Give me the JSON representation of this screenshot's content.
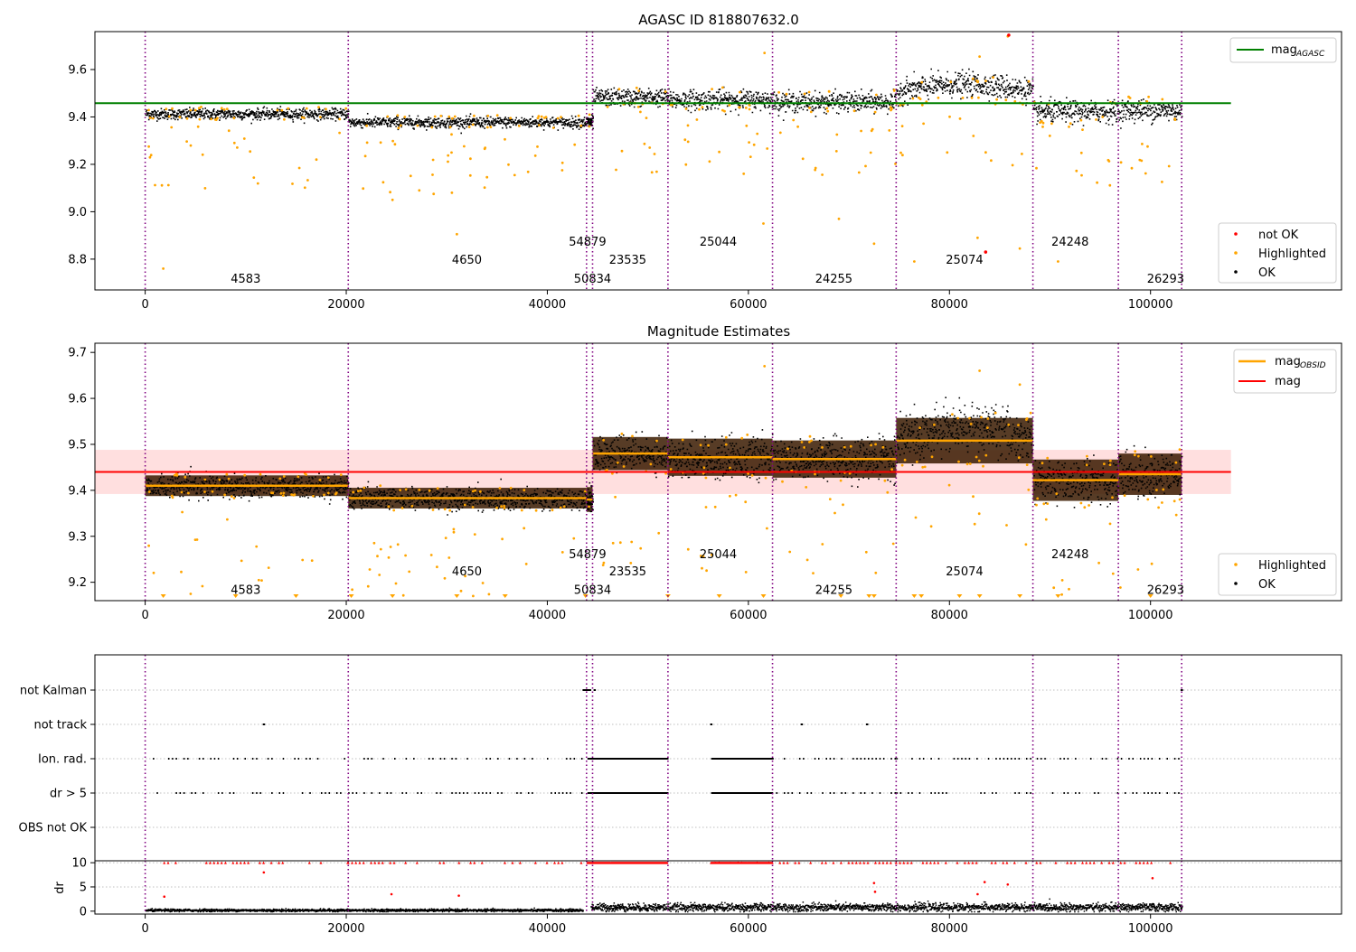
{
  "figure": {
    "title_top": "AGASC ID 818807632.0",
    "title_middle": "Magnitude Estimates"
  },
  "colors": {
    "ok": "#000000",
    "highlighted": "#ffa500",
    "not_ok": "#ff0000",
    "agasc_line": "#008000",
    "mag_line": "#ff0000",
    "mag_obsid_line": "#ffa500",
    "band": "#ffc0c0",
    "obs_boundary": "#800080"
  },
  "chart_data": [
    {
      "type": "scatter",
      "title": "AGASC ID 818807632.0",
      "xlim": [
        -5000,
        119000
      ],
      "ylim": [
        8.67,
        9.76
      ],
      "xticks": [
        0,
        20000,
        40000,
        60000,
        80000,
        100000
      ],
      "yticks": [
        8.8,
        9.0,
        9.2,
        9.4,
        9.6
      ],
      "obs_boundaries": [
        0,
        20200,
        43900,
        44500,
        52000,
        62400,
        74700,
        88300,
        96800,
        103100
      ],
      "mag_agasc": 9.458,
      "segments": [
        {
          "x0": 0,
          "x1": 20200,
          "mean": 9.415,
          "spread": 0.025
        },
        {
          "x0": 20200,
          "x1": 43900,
          "mean": 9.38,
          "spread": 0.025
        },
        {
          "x0": 43900,
          "x1": 44500,
          "mean": 9.38,
          "spread": 0.03
        },
        {
          "x0": 44500,
          "x1": 52000,
          "mean": 9.485,
          "spread": 0.04
        },
        {
          "x0": 52000,
          "x1": 62400,
          "mean": 9.475,
          "spread": 0.045
        },
        {
          "x0": 62400,
          "x1": 74700,
          "mean": 9.465,
          "spread": 0.045
        },
        {
          "x0": 74700,
          "x1": 88300,
          "mean": 9.51,
          "spread": 0.055
        },
        {
          "x0": 88300,
          "x1": 96800,
          "mean": 9.425,
          "spread": 0.05
        },
        {
          "x0": 96800,
          "x1": 103100,
          "mean": 9.43,
          "spread": 0.05
        }
      ],
      "obsid_labels": [
        {
          "text": "4583",
          "x": 10000,
          "y": 8.72
        },
        {
          "text": "4650",
          "x": 32000,
          "y": 8.8
        },
        {
          "text": "54879",
          "x": 44000,
          "y": 8.875
        },
        {
          "text": "50834",
          "x": 44500,
          "y": 8.72
        },
        {
          "text": "23535",
          "x": 48000,
          "y": 8.8
        },
        {
          "text": "25044",
          "x": 57000,
          "y": 8.875
        },
        {
          "text": "24255",
          "x": 68500,
          "y": 8.72
        },
        {
          "text": "25074",
          "x": 81500,
          "y": 8.8
        },
        {
          "text": "24248",
          "x": 92000,
          "y": 8.875
        },
        {
          "text": "26293",
          "x": 101500,
          "y": 8.72
        }
      ],
      "legend_lines": [
        "mag",
        "AGASC"
      ],
      "legend_points": [
        "not OK",
        "Highlighted",
        "OK"
      ]
    },
    {
      "type": "scatter",
      "title": "Magnitude Estimates",
      "xlim": [
        -5000,
        119000
      ],
      "ylim": [
        9.16,
        9.72
      ],
      "xticks": [
        0,
        20000,
        40000,
        60000,
        80000,
        100000
      ],
      "yticks": [
        9.2,
        9.3,
        9.4,
        9.5,
        9.6,
        9.7
      ],
      "mag": 9.44,
      "mag_band": [
        9.392,
        9.488
      ],
      "mag_line_xmax": 108000,
      "segment_means": [
        9.41,
        9.383,
        9.38,
        9.48,
        9.472,
        9.468,
        9.508,
        9.422,
        9.435
      ],
      "obsid_labels": [
        {
          "text": "4583",
          "x": 10000,
          "y": 9.185
        },
        {
          "text": "4650",
          "x": 32000,
          "y": 9.225
        },
        {
          "text": "54879",
          "x": 44000,
          "y": 9.262
        },
        {
          "text": "50834",
          "x": 44500,
          "y": 9.185
        },
        {
          "text": "23535",
          "x": 48000,
          "y": 9.225
        },
        {
          "text": "25044",
          "x": 57000,
          "y": 9.262
        },
        {
          "text": "24255",
          "x": 68500,
          "y": 9.185
        },
        {
          "text": "25074",
          "x": 81500,
          "y": 9.225
        },
        {
          "text": "24248",
          "x": 92000,
          "y": 9.262
        },
        {
          "text": "26293",
          "x": 101500,
          "y": 9.185
        }
      ],
      "legend_lines": [
        "mag",
        "OBSID",
        "mag"
      ],
      "legend_points": [
        "Highlighted",
        "OK"
      ]
    },
    {
      "type": "scatter",
      "categories": [
        "not Kalman",
        "not track",
        "Ion. rad.",
        "dr > 5",
        "OBS not OK"
      ],
      "xlim": [
        -5000,
        119000
      ],
      "flag_runs": {
        "not_kalman": [
          [
            43500,
            44300
          ],
          [
            44600,
            44700
          ],
          [
            103000,
            103100
          ]
        ],
        "not_track": [
          [
            11700,
            11800
          ],
          [
            56200,
            56300
          ],
          [
            65200,
            65300
          ],
          [
            71700,
            71800
          ]
        ],
        "ion_rad": [
          [
            0,
            20200
          ],
          [
            20200,
            43500
          ],
          [
            44000,
            52000
          ],
          [
            56300,
            74700
          ],
          [
            74700,
            88300
          ],
          [
            88300,
            103100
          ]
        ],
        "dr_gt_5": [
          [
            0,
            20200
          ],
          [
            20200,
            43500
          ],
          [
            44000,
            52000
          ],
          [
            56300,
            74700
          ],
          [
            74700,
            88300
          ],
          [
            88300,
            103100
          ]
        ]
      }
    },
    {
      "type": "scatter",
      "ylabel": "dr",
      "xlim": [
        -5000,
        119000
      ],
      "ylim": [
        -0.6,
        10.4
      ],
      "xticks": [
        0,
        20000,
        40000,
        60000,
        80000,
        100000
      ],
      "yticks": [
        0,
        5,
        10
      ],
      "ok_level": [
        [
          0,
          43500,
          0.3
        ],
        [
          44300,
          103100,
          0.9
        ]
      ],
      "clipped_value": 10
    }
  ]
}
